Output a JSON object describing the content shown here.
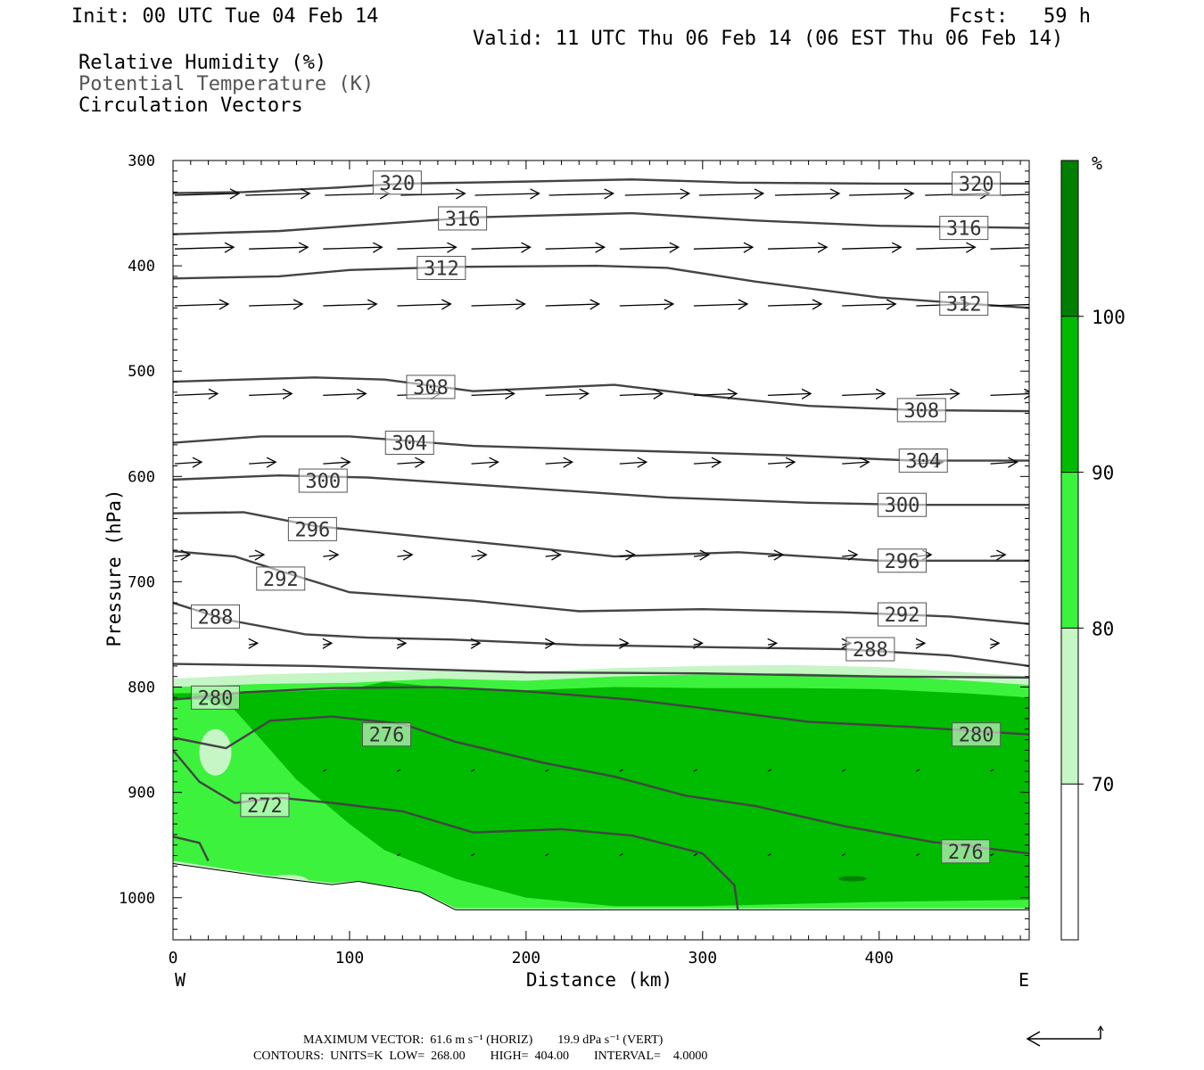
{
  "header": {
    "init": "Init: 00 UTC Tue 04 Feb 14",
    "fcst": "Fcst:   59 h",
    "valid": "Valid: 11 UTC Thu 06 Feb 14 (06 EST Thu 06 Feb 14)"
  },
  "fields": {
    "rh": "Relative Humidity (%)",
    "theta": "Potential Temperature (K)",
    "vectors": "Circulation Vectors"
  },
  "footer": {
    "line1": "MAXIMUM VECTOR:  61.6 m s⁻¹ (HORIZ)        19.9 dPa s⁻¹ (VERT)",
    "line2": "CONTOURS:  UNITS=K  LOW=  268.00        HIGH=  404.00        INTERVAL=    4.0000"
  },
  "chart_data": {
    "type": "contour",
    "xlabel": "Distance (km)",
    "ylabel": "Pressure (hPa)",
    "xlim": [
      0,
      485
    ],
    "ylim": [
      1040,
      300
    ],
    "x_ticks": [
      0,
      100,
      200,
      300,
      400
    ],
    "y_ticks": [
      300,
      400,
      500,
      600,
      700,
      800,
      900,
      1000
    ],
    "x_end_labels": {
      "left": "W",
      "right": "E"
    },
    "colorbar": {
      "unit": "%",
      "levels": [
        70,
        80,
        90,
        100
      ],
      "colors": [
        "#ffffff",
        "#c6f5c6",
        "#3df23d",
        "#00bb00",
        "#007f00"
      ]
    },
    "rh_fill": [
      {
        "level": 70,
        "color": "#c6f5c6",
        "top": [
          [
            0,
            792
          ],
          [
            50,
            788
          ],
          [
            100,
            786
          ],
          [
            150,
            784
          ],
          [
            200,
            786
          ],
          [
            250,
            782
          ],
          [
            300,
            780
          ],
          [
            350,
            779
          ],
          [
            400,
            781
          ],
          [
            450,
            786
          ],
          [
            485,
            790
          ]
        ],
        "bottom": [
          [
            0,
            968
          ],
          [
            50,
            982
          ],
          [
            90,
            990
          ],
          [
            105,
            988
          ],
          [
            140,
            998
          ],
          [
            160,
            1012
          ],
          [
            485,
            1012
          ]
        ]
      },
      {
        "level": 80,
        "color": "#3df23d",
        "top": [
          [
            0,
            800
          ],
          [
            50,
            797
          ],
          [
            100,
            796
          ],
          [
            150,
            792
          ],
          [
            200,
            794
          ],
          [
            250,
            790
          ],
          [
            300,
            788
          ],
          [
            350,
            787
          ],
          [
            400,
            789
          ],
          [
            450,
            794
          ],
          [
            485,
            798
          ]
        ],
        "bottom": [
          [
            0,
            965
          ],
          [
            50,
            978
          ],
          [
            90,
            986
          ],
          [
            105,
            984
          ],
          [
            140,
            994
          ],
          [
            160,
            1010
          ],
          [
            485,
            1010
          ]
        ]
      },
      {
        "level": 90,
        "color": "#00bb00",
        "top": [
          [
            0,
            806
          ],
          [
            40,
            805
          ],
          [
            70,
            804
          ],
          [
            100,
            802
          ],
          [
            120,
            795
          ],
          [
            150,
            800
          ],
          [
            200,
            803
          ],
          [
            250,
            800
          ],
          [
            300,
            801
          ],
          [
            350,
            801
          ],
          [
            400,
            802
          ],
          [
            450,
            806
          ],
          [
            485,
            810
          ]
        ],
        "bottom": [
          [
            485,
            1002
          ],
          [
            400,
            1004
          ],
          [
            300,
            1008
          ],
          [
            250,
            1008
          ],
          [
            200,
            1000
          ],
          [
            160,
            982
          ],
          [
            120,
            955
          ],
          [
            100,
            930
          ],
          [
            70,
            888
          ],
          [
            50,
            850
          ],
          [
            35,
            822
          ],
          [
            20,
            812
          ],
          [
            0,
            812
          ]
        ]
      }
    ],
    "theta_labels": [
      {
        "value": 320,
        "x": 127,
        "p": 321
      },
      {
        "value": 320,
        "x": 455,
        "p": 322
      },
      {
        "value": 316,
        "x": 164,
        "p": 355
      },
      {
        "value": 316,
        "x": 448,
        "p": 364
      },
      {
        "value": 312,
        "x": 152,
        "p": 402
      },
      {
        "value": 312,
        "x": 448,
        "p": 436
      },
      {
        "value": 308,
        "x": 146,
        "p": 515
      },
      {
        "value": 308,
        "x": 424,
        "p": 537
      },
      {
        "value": 304,
        "x": 134,
        "p": 568
      },
      {
        "value": 304,
        "x": 425,
        "p": 585
      },
      {
        "value": 300,
        "x": 85,
        "p": 604
      },
      {
        "value": 300,
        "x": 413,
        "p": 627
      },
      {
        "value": 296,
        "x": 79,
        "p": 650
      },
      {
        "value": 296,
        "x": 413,
        "p": 680
      },
      {
        "value": 292,
        "x": 61,
        "p": 697
      },
      {
        "value": 292,
        "x": 413,
        "p": 731
      },
      {
        "value": 288,
        "x": 24,
        "p": 733
      },
      {
        "value": 288,
        "x": 395,
        "p": 764
      },
      {
        "value": 280,
        "x": 24,
        "p": 810
      },
      {
        "value": 280,
        "x": 455,
        "p": 845
      },
      {
        "value": 276,
        "x": 121,
        "p": 845
      },
      {
        "value": 276,
        "x": 449,
        "p": 956
      },
      {
        "value": 272,
        "x": 52,
        "p": 912
      }
    ]
  }
}
